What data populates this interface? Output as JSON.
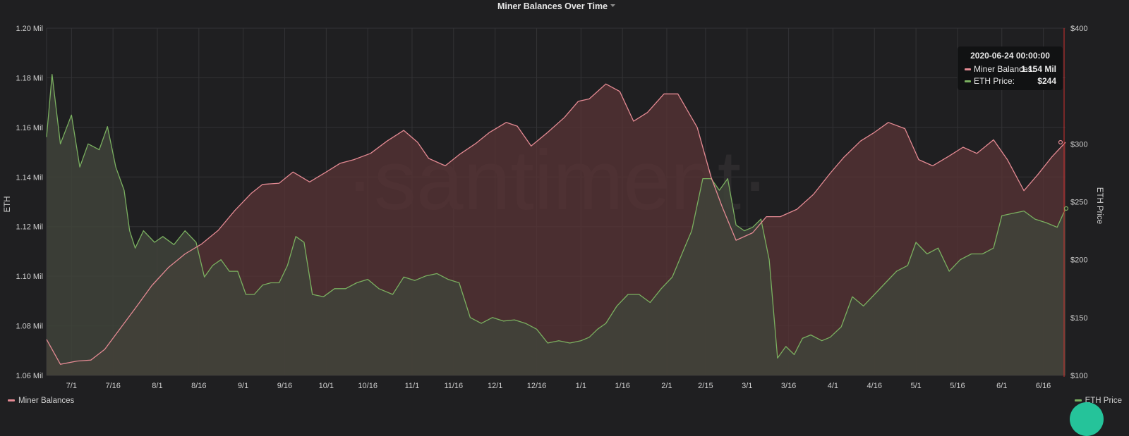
{
  "colors": {
    "background": "#1f1f21",
    "grid": "#333336",
    "balances_line": "#e48a93",
    "balances_fill": "#5a3436",
    "price_line": "#7ab060",
    "price_fill": "#3f4339",
    "axis_text": "#cfcfcf",
    "badge": "#25c39a"
  },
  "watermark": "·santiment·",
  "tooltip": {
    "date": "2020-06-24 00:00:00",
    "rows": [
      {
        "label": "Miner Balances:",
        "value": "1.154 Mil",
        "color": "#e48a93"
      },
      {
        "label": "ETH Price:",
        "value": "$244",
        "color": "#7ab060"
      }
    ]
  },
  "legend": {
    "left": {
      "label": "Miner Balances",
      "color": "#e48a93"
    },
    "right": {
      "label": "ETH Price",
      "color": "#7ab060"
    }
  },
  "chart_data": {
    "type": "line",
    "title": "Miner Balances Over Time",
    "title_icon": "caret-down-icon",
    "grid": true,
    "x_tick_labels": [
      "7/1",
      "7/16",
      "8/1",
      "8/16",
      "9/1",
      "9/16",
      "10/1",
      "10/16",
      "11/1",
      "11/16",
      "12/1",
      "12/16",
      "1/1",
      "1/16",
      "2/1",
      "2/15",
      "3/1",
      "3/16",
      "4/1",
      "4/16",
      "5/1",
      "5/16",
      "6/1",
      "6/16"
    ],
    "x_range": [
      "2019-06-22",
      "2020-06-24"
    ],
    "left_axis": {
      "label": "ETH",
      "range": [
        1.06,
        1.2
      ],
      "ticks": [
        1.06,
        1.08,
        1.1,
        1.12,
        1.14,
        1.16,
        1.18,
        1.2
      ],
      "tick_labels": [
        "1.06 Mil",
        "1.08 Mil",
        "1.10 Mil",
        "1.12 Mil",
        "1.14 Mil",
        "1.16 Mil",
        "1.18 Mil",
        "1.20 Mil"
      ]
    },
    "right_axis": {
      "label": "ETH Price",
      "range": [
        100,
        400
      ],
      "ticks": [
        100,
        150,
        200,
        250,
        300,
        400
      ],
      "tick_labels": [
        "$100",
        "$150",
        "$200",
        "$250",
        "$300",
        "$400"
      ]
    },
    "series": [
      {
        "name": "Miner Balances",
        "axis": "left",
        "points": [
          [
            "2019-06-22",
            1.0745
          ],
          [
            "2019-06-27",
            1.0645
          ],
          [
            "2019-07-03",
            1.0658
          ],
          [
            "2019-07-08",
            1.0662
          ],
          [
            "2019-07-13",
            1.0705
          ],
          [
            "2019-07-18",
            1.078
          ],
          [
            "2019-07-24",
            1.087
          ],
          [
            "2019-07-30",
            1.0962
          ],
          [
            "2019-08-05",
            1.1035
          ],
          [
            "2019-08-11",
            1.109
          ],
          [
            "2019-08-17",
            1.113
          ],
          [
            "2019-08-23",
            1.1185
          ],
          [
            "2019-08-29",
            1.1265
          ],
          [
            "2019-09-04",
            1.1335
          ],
          [
            "2019-09-08",
            1.137
          ],
          [
            "2019-09-14",
            1.1375
          ],
          [
            "2019-09-19",
            1.142
          ],
          [
            "2019-09-25",
            1.138
          ],
          [
            "2019-10-01",
            1.142
          ],
          [
            "2019-10-06",
            1.1455
          ],
          [
            "2019-10-11",
            1.147
          ],
          [
            "2019-10-17",
            1.1495
          ],
          [
            "2019-10-23",
            1.1545
          ],
          [
            "2019-10-29",
            1.1588
          ],
          [
            "2019-11-03",
            1.154
          ],
          [
            "2019-11-07",
            1.1475
          ],
          [
            "2019-11-13",
            1.1445
          ],
          [
            "2019-11-18",
            1.149
          ],
          [
            "2019-11-24",
            1.1535
          ],
          [
            "2019-11-29",
            1.158
          ],
          [
            "2019-12-05",
            1.162
          ],
          [
            "2019-12-09",
            1.1605
          ],
          [
            "2019-12-14",
            1.1525
          ],
          [
            "2019-12-20",
            1.158
          ],
          [
            "2019-12-26",
            1.164
          ],
          [
            "2019-12-31",
            1.1705
          ],
          [
            "2020-01-04",
            1.1715
          ],
          [
            "2020-01-10",
            1.1775
          ],
          [
            "2020-01-15",
            1.1745
          ],
          [
            "2020-01-20",
            1.1625
          ],
          [
            "2020-01-25",
            1.166
          ],
          [
            "2020-01-31",
            1.1735
          ],
          [
            "2020-02-05",
            1.1735
          ],
          [
            "2020-02-12",
            1.16
          ],
          [
            "2020-02-17",
            1.14
          ],
          [
            "2020-02-21",
            1.128
          ],
          [
            "2020-02-26",
            1.1145
          ],
          [
            "2020-03-03",
            1.1175
          ],
          [
            "2020-03-08",
            1.124
          ],
          [
            "2020-03-13",
            1.124
          ],
          [
            "2020-03-19",
            1.127
          ],
          [
            "2020-03-25",
            1.133
          ],
          [
            "2020-03-31",
            1.1415
          ],
          [
            "2020-04-05",
            1.148
          ],
          [
            "2020-04-11",
            1.1545
          ],
          [
            "2020-04-16",
            1.158
          ],
          [
            "2020-04-21",
            1.162
          ],
          [
            "2020-04-27",
            1.1595
          ],
          [
            "2020-05-02",
            1.147
          ],
          [
            "2020-05-07",
            1.1445
          ],
          [
            "2020-05-13",
            1.1485
          ],
          [
            "2020-05-18",
            1.152
          ],
          [
            "2020-05-23",
            1.1495
          ],
          [
            "2020-05-29",
            1.155
          ],
          [
            "2020-06-03",
            1.147
          ],
          [
            "2020-06-09",
            1.1345
          ],
          [
            "2020-06-14",
            1.141
          ],
          [
            "2020-06-19",
            1.148
          ],
          [
            "2020-06-24",
            1.154
          ]
        ]
      },
      {
        "name": "ETH Price",
        "axis": "right",
        "points": [
          [
            "2019-06-22",
            306
          ],
          [
            "2019-06-24",
            360
          ],
          [
            "2019-06-27",
            300
          ],
          [
            "2019-07-01",
            325
          ],
          [
            "2019-07-04",
            280
          ],
          [
            "2019-07-07",
            300
          ],
          [
            "2019-07-11",
            295
          ],
          [
            "2019-07-14",
            315
          ],
          [
            "2019-07-17",
            280
          ],
          [
            "2019-07-20",
            260
          ],
          [
            "2019-07-22",
            225
          ],
          [
            "2019-07-24",
            210
          ],
          [
            "2019-07-27",
            225
          ],
          [
            "2019-07-31",
            215
          ],
          [
            "2019-08-03",
            220
          ],
          [
            "2019-08-07",
            213
          ],
          [
            "2019-08-11",
            225
          ],
          [
            "2019-08-15",
            215
          ],
          [
            "2019-08-18",
            185
          ],
          [
            "2019-08-21",
            195
          ],
          [
            "2019-08-24",
            200
          ],
          [
            "2019-08-27",
            190
          ],
          [
            "2019-08-30",
            190
          ],
          [
            "2019-09-02",
            170
          ],
          [
            "2019-09-05",
            170
          ],
          [
            "2019-09-08",
            178
          ],
          [
            "2019-09-11",
            180
          ],
          [
            "2019-09-14",
            180
          ],
          [
            "2019-09-17",
            195
          ],
          [
            "2019-09-20",
            220
          ],
          [
            "2019-09-23",
            215
          ],
          [
            "2019-09-26",
            170
          ],
          [
            "2019-09-30",
            168
          ],
          [
            "2019-10-04",
            175
          ],
          [
            "2019-10-08",
            175
          ],
          [
            "2019-10-12",
            180
          ],
          [
            "2019-10-16",
            183
          ],
          [
            "2019-10-20",
            175
          ],
          [
            "2019-10-25",
            170
          ],
          [
            "2019-10-29",
            185
          ],
          [
            "2019-11-02",
            182
          ],
          [
            "2019-11-06",
            186
          ],
          [
            "2019-11-10",
            188
          ],
          [
            "2019-11-14",
            183
          ],
          [
            "2019-11-18",
            180
          ],
          [
            "2019-11-22",
            150
          ],
          [
            "2019-11-26",
            145
          ],
          [
            "2019-11-30",
            150
          ],
          [
            "2019-12-04",
            147
          ],
          [
            "2019-12-08",
            148
          ],
          [
            "2019-12-12",
            145
          ],
          [
            "2019-12-16",
            140
          ],
          [
            "2019-12-20",
            128
          ],
          [
            "2019-12-24",
            130
          ],
          [
            "2019-12-28",
            128
          ],
          [
            "2020-01-01",
            130
          ],
          [
            "2020-01-04",
            133
          ],
          [
            "2020-01-07",
            140
          ],
          [
            "2020-01-10",
            145
          ],
          [
            "2020-01-14",
            160
          ],
          [
            "2020-01-18",
            170
          ],
          [
            "2020-01-22",
            170
          ],
          [
            "2020-01-26",
            163
          ],
          [
            "2020-01-30",
            175
          ],
          [
            "2020-02-03",
            185
          ],
          [
            "2020-02-07",
            208
          ],
          [
            "2020-02-10",
            225
          ],
          [
            "2020-02-14",
            270
          ],
          [
            "2020-02-17",
            270
          ],
          [
            "2020-02-20",
            260
          ],
          [
            "2020-02-23",
            270
          ],
          [
            "2020-02-26",
            230
          ],
          [
            "2020-02-29",
            225
          ],
          [
            "2020-03-03",
            228
          ],
          [
            "2020-03-06",
            235
          ],
          [
            "2020-03-09",
            200
          ],
          [
            "2020-03-12",
            115
          ],
          [
            "2020-03-15",
            125
          ],
          [
            "2020-03-18",
            118
          ],
          [
            "2020-03-21",
            132
          ],
          [
            "2020-03-24",
            135
          ],
          [
            "2020-03-28",
            130
          ],
          [
            "2020-03-31",
            133
          ],
          [
            "2020-04-04",
            142
          ],
          [
            "2020-04-08",
            168
          ],
          [
            "2020-04-12",
            160
          ],
          [
            "2020-04-16",
            170
          ],
          [
            "2020-04-20",
            180
          ],
          [
            "2020-04-24",
            190
          ],
          [
            "2020-04-28",
            195
          ],
          [
            "2020-05-01",
            215
          ],
          [
            "2020-05-05",
            205
          ],
          [
            "2020-05-09",
            210
          ],
          [
            "2020-05-13",
            190
          ],
          [
            "2020-05-17",
            200
          ],
          [
            "2020-05-21",
            205
          ],
          [
            "2020-05-25",
            205
          ],
          [
            "2020-05-29",
            210
          ],
          [
            "2020-06-01",
            238
          ],
          [
            "2020-06-05",
            240
          ],
          [
            "2020-06-09",
            242
          ],
          [
            "2020-06-13",
            235
          ],
          [
            "2020-06-17",
            232
          ],
          [
            "2020-06-21",
            228
          ],
          [
            "2020-06-24",
            244
          ]
        ]
      }
    ]
  }
}
